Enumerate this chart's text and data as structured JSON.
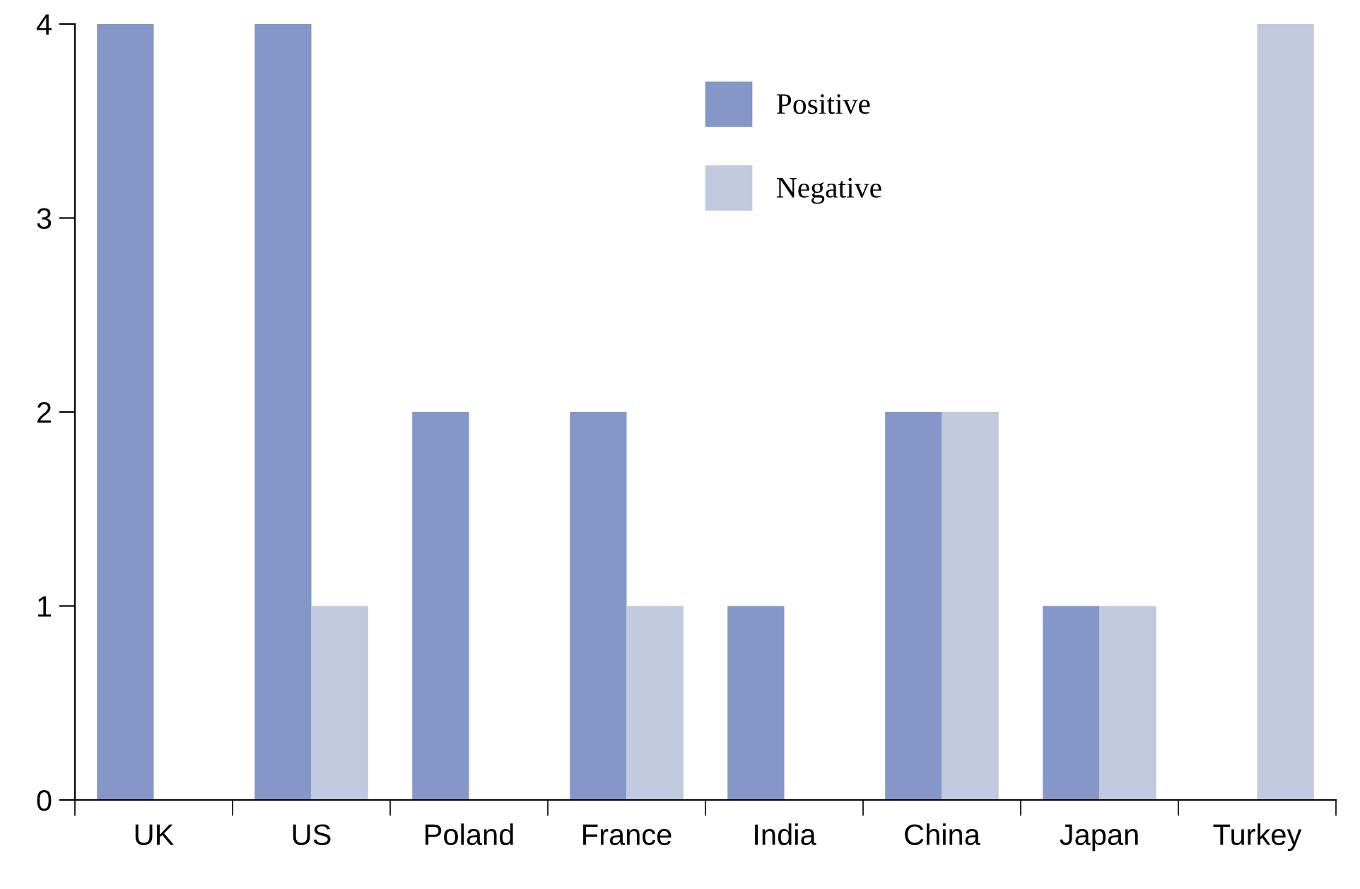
{
  "chart_data": {
    "type": "bar",
    "categories": [
      "UK",
      "US",
      "Poland",
      "France",
      "India",
      "China",
      "Japan",
      "Turkey"
    ],
    "series": [
      {
        "name": "Positive",
        "color": "#8497c8",
        "values": [
          4,
          4,
          2,
          2,
          1,
          2,
          1,
          0
        ]
      },
      {
        "name": "Negative",
        "color": "#c0c9dd",
        "values": [
          0,
          1,
          0,
          1,
          0,
          2,
          1,
          4
        ]
      }
    ],
    "ylim": [
      0,
      4
    ],
    "yticks": [
      0,
      1,
      2,
      3,
      4
    ],
    "grid": false,
    "legend": "top"
  }
}
